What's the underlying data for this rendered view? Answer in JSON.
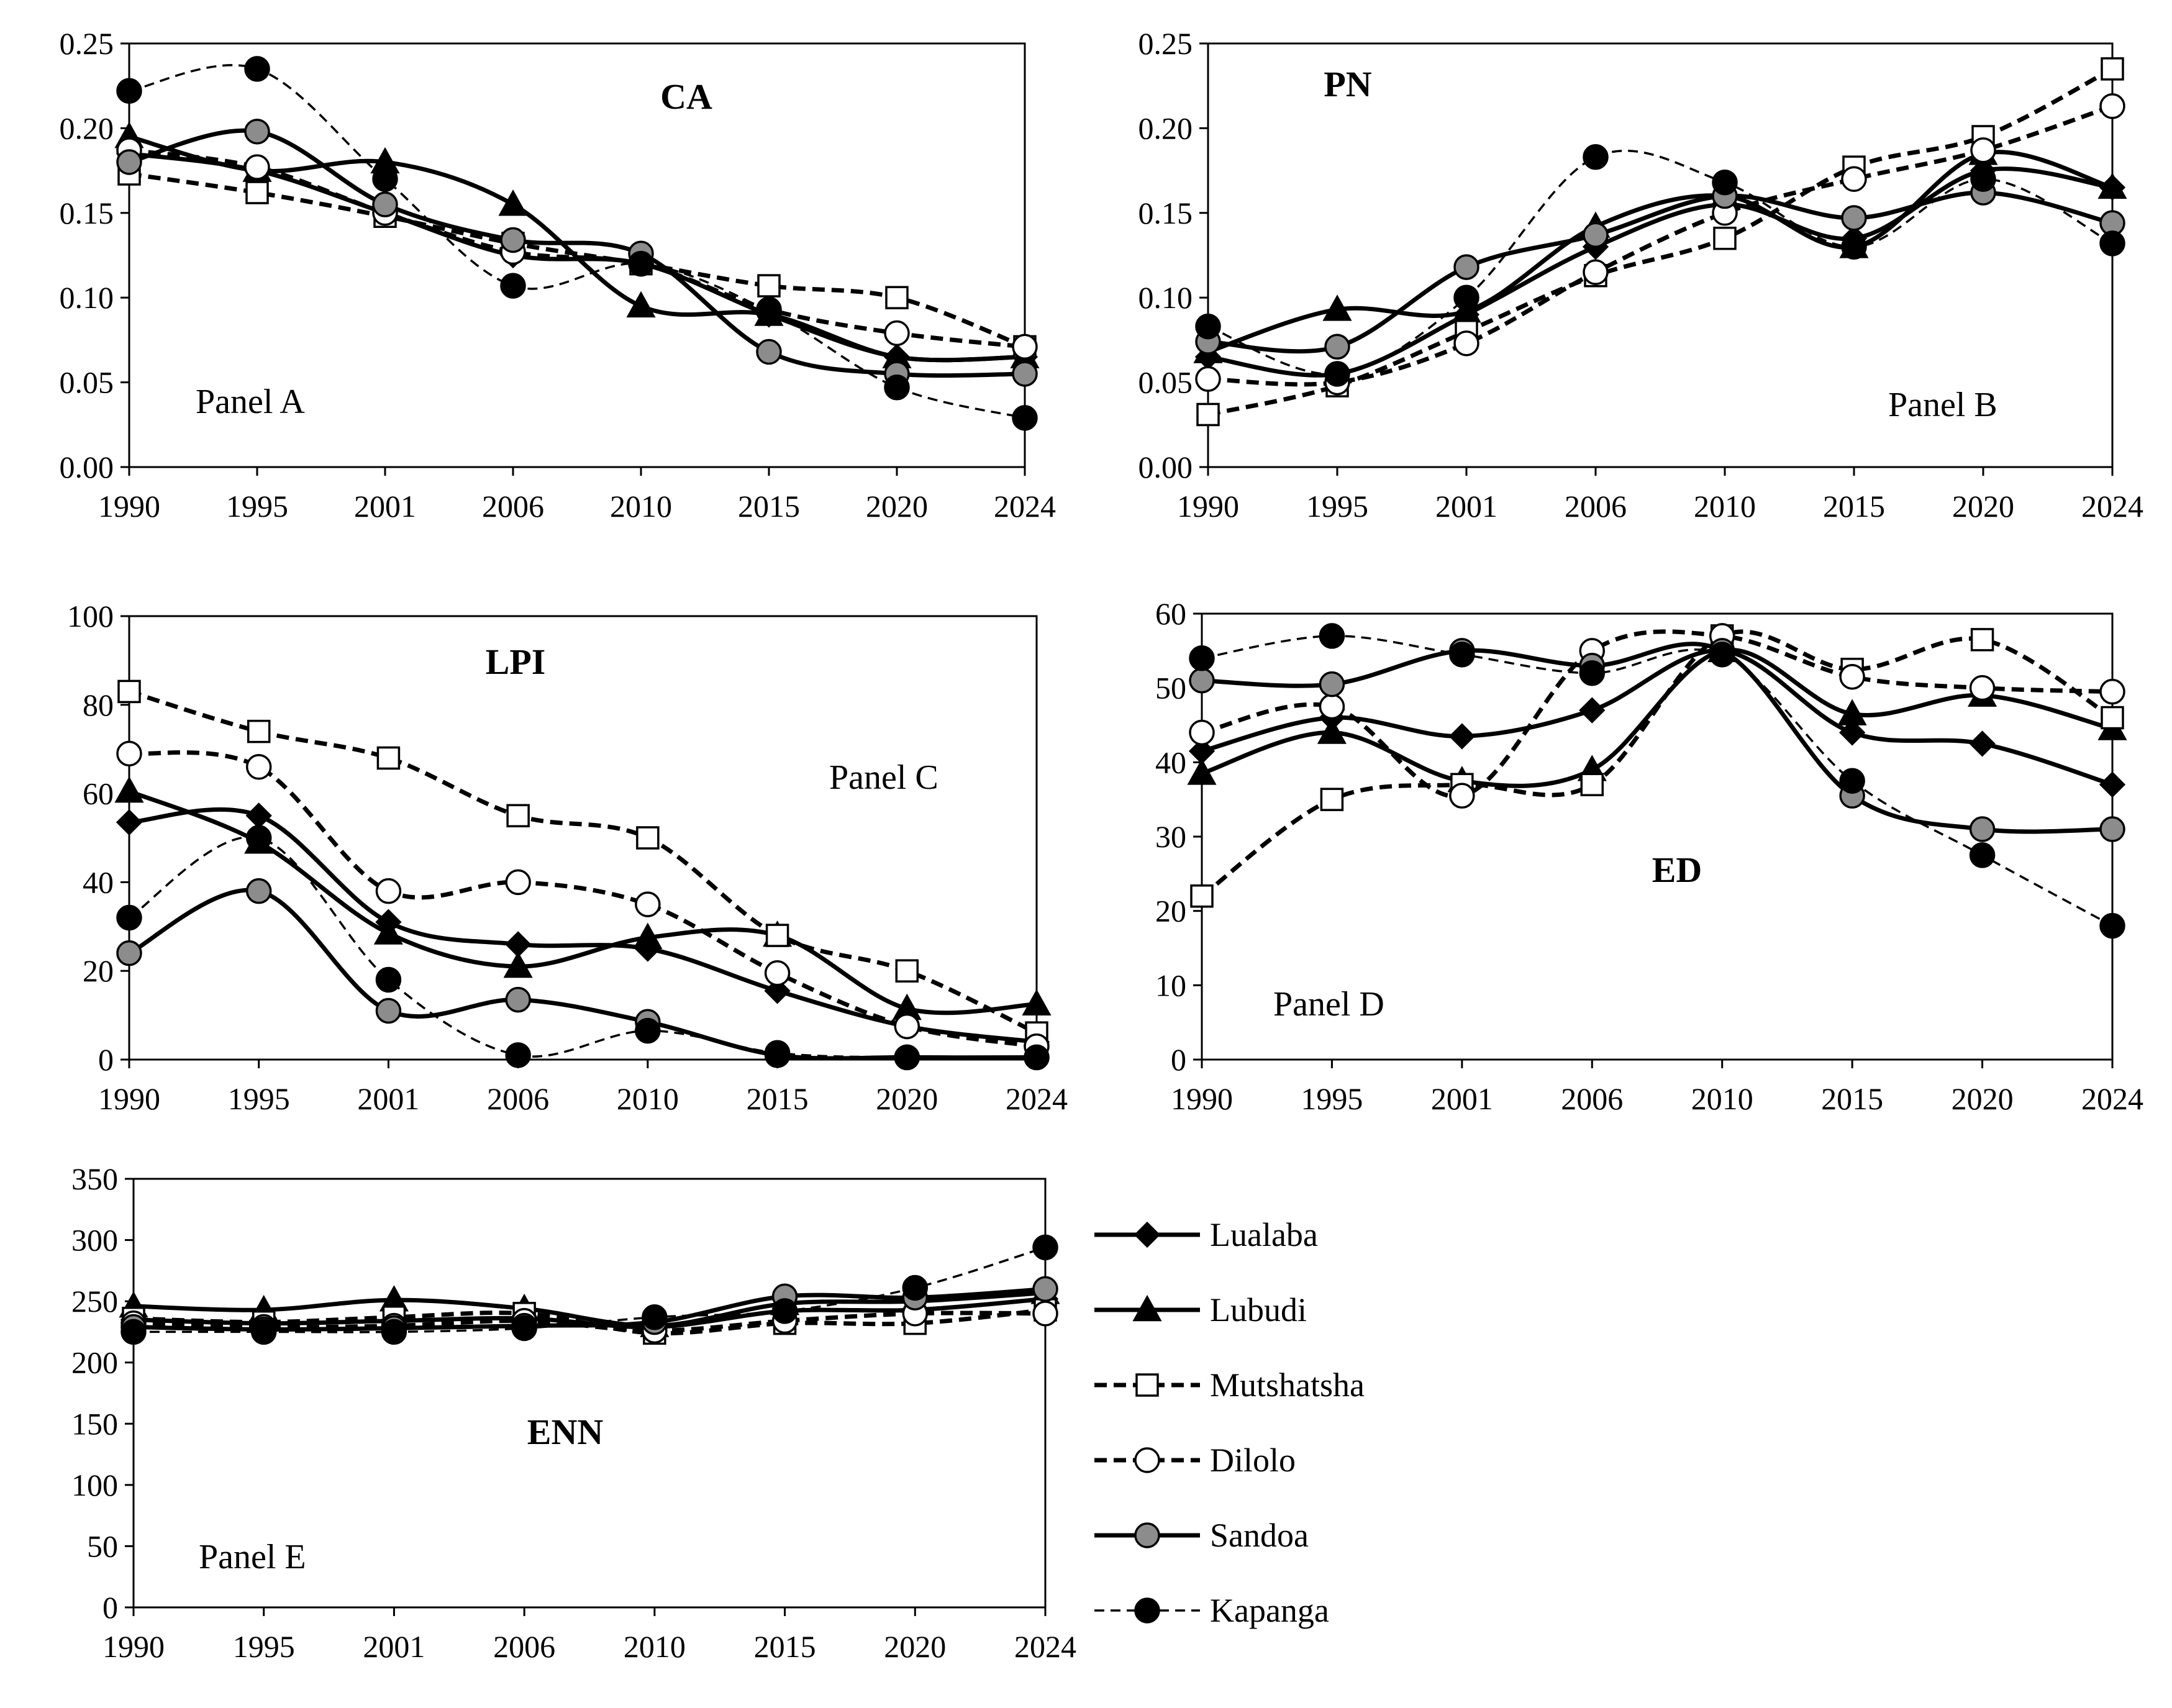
{
  "chart_data": {
    "type": "line",
    "categories": [
      "1990",
      "1995",
      "2001",
      "2006",
      "2010",
      "2015",
      "2020",
      "2024"
    ],
    "legend": [
      {
        "name": "Lualaba",
        "style": "solid",
        "marker": "diamond",
        "fill": "black"
      },
      {
        "name": "Lubudi",
        "style": "solid",
        "marker": "triangle",
        "fill": "black"
      },
      {
        "name": "Mutshatsha",
        "style": "dashed",
        "marker": "square",
        "fill": "white"
      },
      {
        "name": "Dilolo",
        "style": "dashed",
        "marker": "circle",
        "fill": "white"
      },
      {
        "name": "Sandoa",
        "style": "solid",
        "marker": "circle",
        "fill": "gray"
      },
      {
        "name": "Kapanga",
        "style": "dashed-thin",
        "marker": "circle",
        "fill": "black"
      }
    ],
    "panels": [
      {
        "id": "A",
        "title": "CA",
        "label": "Panel A",
        "ylim": [
          0,
          0.25
        ],
        "yticks": [
          "0.00",
          "0.05",
          "0.10",
          "0.15",
          "0.20",
          "0.25"
        ],
        "series": [
          {
            "name": "Lualaba",
            "values": [
              0.185,
              0.175,
              0.15,
              0.125,
              0.12,
              0.09,
              0.065,
              0.065
            ]
          },
          {
            "name": "Lubudi",
            "values": [
              0.195,
              0.175,
              0.18,
              0.155,
              0.095,
              0.09,
              0.065,
              0.065
            ]
          },
          {
            "name": "Mutshatsha",
            "values": [
              0.173,
              0.162,
              0.148,
              0.132,
              0.12,
              0.107,
              0.1,
              0.071
            ]
          },
          {
            "name": "Dilolo",
            "values": [
              0.187,
              0.177,
              0.15,
              0.127,
              0.12,
              0.093,
              0.079,
              0.071
            ]
          },
          {
            "name": "Sandoa",
            "values": [
              0.18,
              0.198,
              0.155,
              0.134,
              0.126,
              0.068,
              0.055,
              0.055
            ]
          },
          {
            "name": "Kapanga",
            "values": [
              0.222,
              0.235,
              0.17,
              0.107,
              0.12,
              0.092,
              0.047,
              0.029
            ]
          }
        ]
      },
      {
        "id": "B",
        "title": "PN",
        "label": "Panel B",
        "ylim": [
          0,
          0.25
        ],
        "yticks": [
          "0.00",
          "0.05",
          "0.10",
          "0.15",
          "0.20",
          "0.25"
        ],
        "series": [
          {
            "name": "Lualaba",
            "values": [
              0.065,
              0.055,
              0.09,
              0.13,
              0.155,
              0.135,
              0.175,
              0.165
            ]
          },
          {
            "name": "Lubudi",
            "values": [
              0.068,
              0.093,
              0.092,
              0.142,
              0.16,
              0.13,
              0.185,
              0.165
            ]
          },
          {
            "name": "Mutshatsha",
            "values": [
              0.031,
              0.048,
              0.08,
              0.113,
              0.135,
              0.177,
              0.195,
              0.235
            ]
          },
          {
            "name": "Dilolo",
            "values": [
              0.052,
              0.05,
              0.073,
              0.115,
              0.15,
              0.17,
              0.187,
              0.213
            ]
          },
          {
            "name": "Sandoa",
            "values": [
              0.074,
              0.071,
              0.118,
              0.137,
              0.16,
              0.147,
              0.162,
              0.144
            ]
          },
          {
            "name": "Kapanga",
            "values": [
              0.083,
              0.055,
              0.1,
              0.183,
              0.168,
              0.13,
              0.17,
              0.132
            ]
          }
        ]
      },
      {
        "id": "C",
        "title": "LPI",
        "label": "Panel C",
        "ylim": [
          0,
          100
        ],
        "yticks": [
          "0",
          "20",
          "40",
          "60",
          "80",
          "100"
        ],
        "series": [
          {
            "name": "Lualaba",
            "values": [
              53.5,
              55,
              31,
              26,
              25,
              15.5,
              7.5,
              4
            ]
          },
          {
            "name": "Lubudi",
            "values": [
              60.5,
              49,
              28.5,
              21,
              27.5,
              28,
              11.5,
              12.5
            ]
          },
          {
            "name": "Mutshatsha",
            "values": [
              83,
              74,
              68,
              55,
              50,
              28,
              20,
              6
            ]
          },
          {
            "name": "Dilolo",
            "values": [
              69,
              66,
              38,
              40,
              35,
              19.5,
              7.5,
              3
            ]
          },
          {
            "name": "Sandoa",
            "values": [
              24,
              38,
              11,
              13.5,
              8.5,
              1,
              0.5,
              0.5
            ]
          },
          {
            "name": "Kapanga",
            "values": [
              32,
              50,
              18,
              1,
              6.5,
              1.5,
              0.5,
              0.5
            ]
          }
        ]
      },
      {
        "id": "D",
        "title": "ED",
        "label": "Panel D",
        "ylim": [
          0,
          60
        ],
        "yticks": [
          "0",
          "10",
          "20",
          "30",
          "40",
          "50",
          "60"
        ],
        "series": [
          {
            "name": "Lualaba",
            "values": [
              41.5,
              46,
              43.5,
              47,
              55,
              44,
              42.5,
              37
            ]
          },
          {
            "name": "Lubudi",
            "values": [
              38.5,
              44,
              37.5,
              39,
              55,
              46.5,
              49,
              44.5
            ]
          },
          {
            "name": "Mutshatsha",
            "values": [
              22,
              35,
              37,
              37,
              57,
              52.5,
              56.5,
              46
            ]
          },
          {
            "name": "Dilolo",
            "values": [
              44,
              47.5,
              35.5,
              55,
              57,
              51.5,
              50,
              49.5
            ]
          },
          {
            "name": "Sandoa",
            "values": [
              51,
              50.5,
              55,
              53,
              55,
              35.5,
              31,
              31
            ]
          },
          {
            "name": "Kapanga",
            "values": [
              54,
              57,
              54.5,
              52,
              54.5,
              37.5,
              27.5,
              18
            ]
          }
        ]
      },
      {
        "id": "E",
        "title": "ENN",
        "label": "Panel E",
        "ylim": [
          0,
          350
        ],
        "yticks": [
          "0",
          "50",
          "100",
          "150",
          "200",
          "250",
          "300",
          "350"
        ],
        "series": [
          {
            "name": "Lualaba",
            "values": [
              235,
              232,
              234,
              236,
              229,
              242,
              243,
              252
            ]
          },
          {
            "name": "Lubudi",
            "values": [
              246,
              243,
              251,
              244,
              230,
              248,
              250,
              257
            ]
          },
          {
            "name": "Mutshatsha",
            "values": [
              236,
              233,
              237,
              240,
              224,
              232,
              232,
              243
            ]
          },
          {
            "name": "Dilolo",
            "values": [
              232,
              229,
              230,
              234,
              226,
              234,
              240,
              240
            ]
          },
          {
            "name": "Sandoa",
            "values": [
              229,
              227,
              228,
              230,
              233,
              254,
              253,
              260
            ]
          },
          {
            "name": "Kapanga",
            "values": [
              225,
              225,
              225,
              228,
              237,
              242,
              261,
              294
            ]
          }
        ]
      }
    ]
  }
}
